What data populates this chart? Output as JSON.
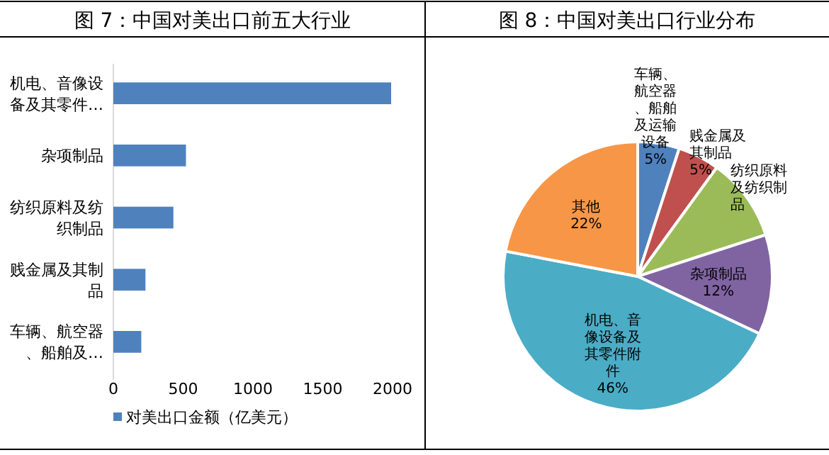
{
  "chart_data": [
    {
      "type": "bar",
      "title": "图 7：中国对美出口前五大行业",
      "orientation": "horizontal",
      "categories": [
        "机电、音像设备及其零件…",
        "杂项制品",
        "纺织原料及纺织制品",
        "贱金属及其制品",
        "车辆、航空器、船舶及…"
      ],
      "series": [
        {
          "name": "对美出口金额（亿美元）",
          "color": "#4f81bd",
          "values": [
            1990,
            520,
            430,
            230,
            200
          ]
        }
      ],
      "xlim": [
        0,
        2000
      ],
      "xticks": [
        0,
        500,
        1000,
        1500,
        2000
      ],
      "legend": "bottom"
    },
    {
      "type": "pie",
      "title": "图 8：中国对美出口行业分布",
      "categories": [
        "车辆、航空器、船舶及运输设备",
        "贱金属及其制品",
        "纺织原料及纺织制品",
        "杂项制品",
        "机电、音像设备及其零件附件",
        "其他"
      ],
      "values": [
        5,
        5,
        10,
        12,
        46,
        22
      ],
      "colors": [
        "#4f81bd",
        "#c0504d",
        "#9bbb59",
        "#8064a2",
        "#4bacc6",
        "#f79646"
      ],
      "value_labels": [
        "5%",
        "5%",
        null,
        "12%",
        "46%",
        "22%"
      ]
    }
  ]
}
